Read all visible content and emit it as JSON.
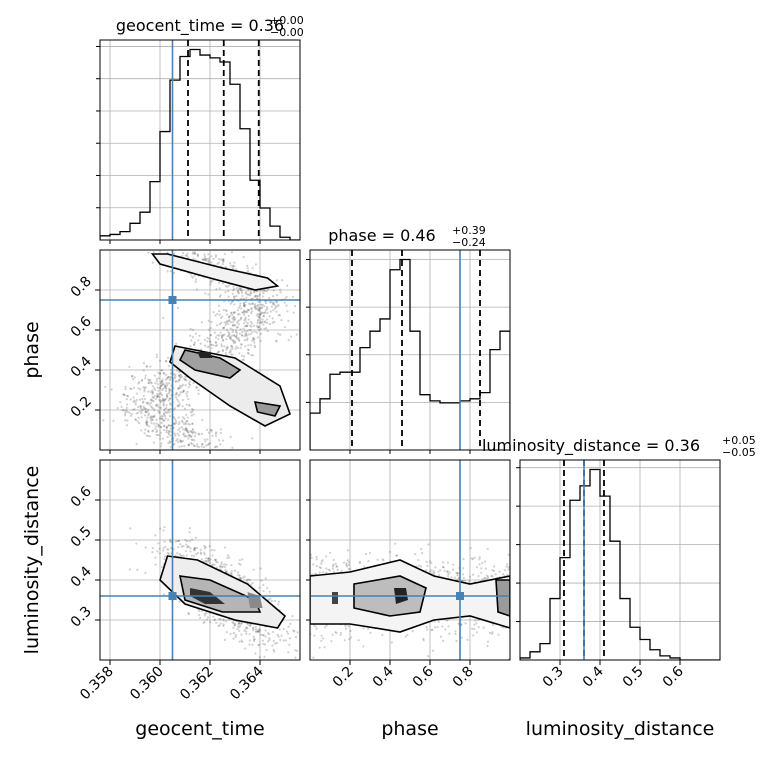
{
  "chart_data": {
    "type": "corner",
    "parameters": [
      "geocent_time",
      "phase",
      "luminosity_distance"
    ],
    "injection": {
      "geocent_time": 0.3605,
      "phase": 0.75,
      "luminosity_distance": 0.36
    },
    "panels": {
      "geocent_time": {
        "title_main": "geocent_time = 0.36",
        "title_sup": "+0.00",
        "title_sub": "−0.00",
        "range": [
          0.3576,
          0.3656
        ],
        "ticks": [
          "0.358",
          "0.360",
          "0.362",
          "0.364"
        ],
        "tick_values": [
          0.358,
          0.36,
          0.362,
          0.364
        ],
        "quantiles": [
          0.36112,
          0.36255,
          0.36395
        ],
        "hist_bins": [
          0.3576,
          0.3656
        ],
        "hist": [
          0.3,
          0.4,
          0.6,
          1.2,
          2.0,
          4.2,
          7.8,
          11.5,
          13.2,
          13.7,
          13.3,
          13.1,
          12.8,
          11.2,
          8.0,
          4.3,
          2.3,
          1.0,
          0.2,
          0.0
        ]
      },
      "phase": {
        "title_main": "phase = 0.46",
        "title_sup": "+0.39",
        "title_sub": "−0.24",
        "range": [
          0.0,
          1.0
        ],
        "ticks": [
          "0.2",
          "0.4",
          "0.6",
          "0.8"
        ],
        "tick_values": [
          0.2,
          0.4,
          0.6,
          0.8
        ],
        "quantiles": [
          0.21,
          0.46,
          0.85
        ],
        "hist": [
          0.18,
          0.25,
          0.37,
          0.38,
          0.38,
          0.5,
          0.58,
          0.64,
          0.88,
          0.93,
          0.58,
          0.27,
          0.24,
          0.23,
          0.23,
          0.24,
          0.25,
          0.28,
          0.49,
          0.58
        ]
      },
      "luminosity_distance": {
        "title_main": "luminosity_distance = 0.36",
        "title_sup": "+0.05",
        "title_sub": "−0.05",
        "range": [
          0.2,
          0.7
        ],
        "ticks": [
          "0.3",
          "0.4",
          "0.5",
          "0.6"
        ],
        "tick_values": [
          0.3,
          0.4,
          0.5,
          0.6
        ],
        "quantiles": [
          0.31,
          0.36,
          0.41
        ],
        "hist": [
          0.01,
          0.04,
          0.08,
          0.3,
          0.5,
          0.78,
          0.85,
          0.93,
          0.8,
          0.58,
          0.3,
          0.16,
          0.1,
          0.05,
          0.02,
          0.01,
          0.0,
          0.0,
          0.0,
          0.0
        ]
      }
    },
    "colors": {
      "injection": "#4682b4",
      "hist": "#000000",
      "grid": "#b0b0b0"
    }
  }
}
